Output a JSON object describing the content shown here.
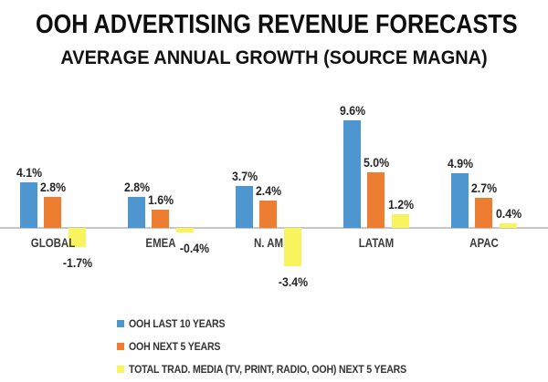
{
  "chart": {
    "title": "OOH ADVERTISING REVENUE FORECASTS",
    "subtitle": "AVERAGE ANNUAL GROWTH (SOURCE MAGNA)"
  },
  "chart_data": {
    "type": "bar",
    "title": "OOH ADVERTISING REVENUE FORECASTS",
    "subtitle": "AVERAGE ANNUAL GROWTH (SOURCE MAGNA)",
    "categories": [
      "GLOBAL",
      "EMEA",
      "N. AM",
      "LATAM",
      "APAC"
    ],
    "series": [
      {
        "name": "OOH LAST 10 YEARS",
        "color": "#4d96cf",
        "values": [
          4.1,
          2.8,
          3.7,
          9.6,
          4.9
        ],
        "labels": [
          "4.1%",
          "2.8%",
          "3.7%",
          "9.6%",
          "4.9%"
        ]
      },
      {
        "name": "OOH NEXT 5 YEARS",
        "color": "#ed7d31",
        "values": [
          2.8,
          1.6,
          2.4,
          5.0,
          2.7
        ],
        "labels": [
          "2.8%",
          "1.6%",
          "2.4%",
          "5.0%",
          "2.7%"
        ]
      },
      {
        "name": "TOTAL TRAD. MEDIA (TV, PRINT, RADIO, OOH) NEXT 5 YEARS",
        "color": "#f8f45e",
        "values": [
          -1.7,
          -0.4,
          -3.4,
          1.2,
          0.4
        ],
        "labels": [
          "-1.7%",
          "-0.4%",
          "-3.4%",
          "1.2%",
          "0.4%"
        ]
      }
    ],
    "xlabel": "",
    "ylabel": "",
    "unit": "%",
    "baseline": 0,
    "grid": false,
    "axis_line_color": "#c8c6c4",
    "legend_position": "bottom-left"
  }
}
